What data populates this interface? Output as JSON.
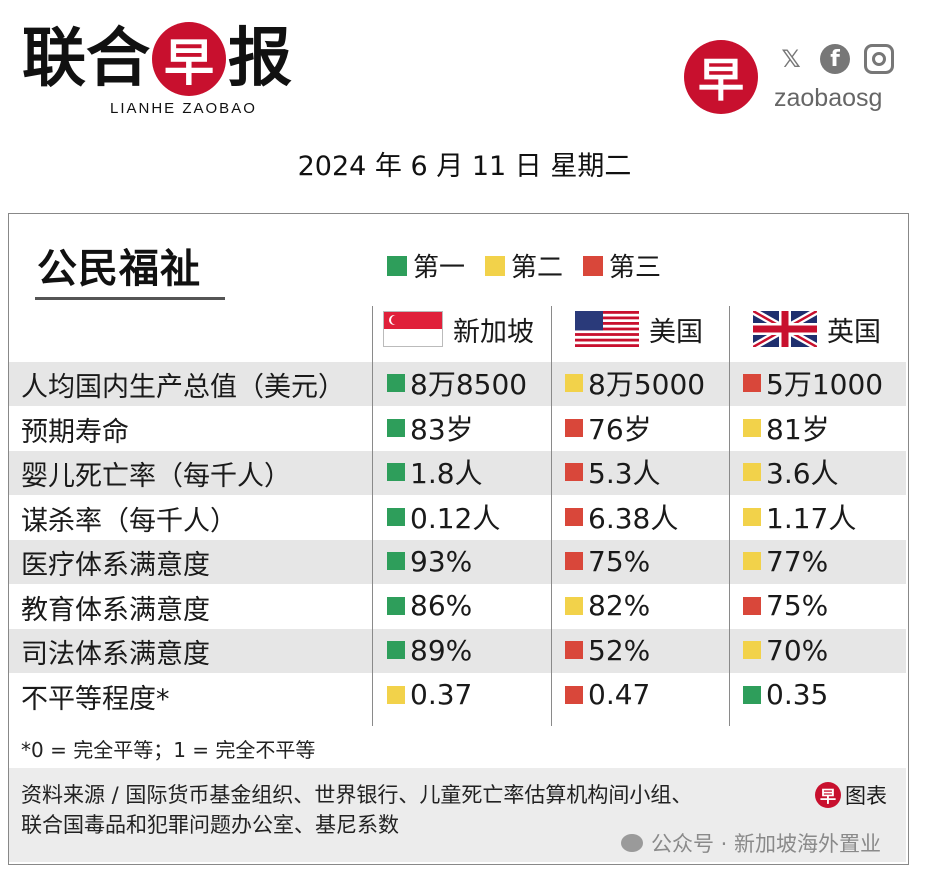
{
  "header": {
    "logo_cn": [
      "联",
      "合",
      "早",
      "报"
    ],
    "logo_en": "LIANHE ZAOBAO",
    "brand_char": "早",
    "social_icons": [
      "x-icon",
      "facebook-icon",
      "instagram-icon"
    ],
    "handle": "zaobaosg",
    "date": "2024 年 6 月 11 日  星期二"
  },
  "card": {
    "title": "公民福祉",
    "legend": [
      {
        "label": "第一",
        "color": "#2e9e5b"
      },
      {
        "label": "第二",
        "color": "#f2d24a"
      },
      {
        "label": "第三",
        "color": "#d9473a"
      }
    ],
    "columns": [
      {
        "name": "新加坡",
        "flag": "singapore-flag"
      },
      {
        "name": "美国",
        "flag": "usa-flag"
      },
      {
        "name": "英国",
        "flag": "uk-flag"
      }
    ],
    "rows": [
      {
        "label": "人均国内生产总值（美元）",
        "values": [
          "8万8500",
          "8万5000",
          "5万1000"
        ],
        "ranks": [
          "green",
          "yellow",
          "red"
        ]
      },
      {
        "label": "预期寿命",
        "values": [
          "83岁",
          "76岁",
          "81岁"
        ],
        "ranks": [
          "green",
          "red",
          "yellow"
        ]
      },
      {
        "label": "婴儿死亡率（每千人）",
        "values": [
          "1.8人",
          "5.3人",
          "3.6人"
        ],
        "ranks": [
          "green",
          "red",
          "yellow"
        ]
      },
      {
        "label": "谋杀率（每千人）",
        "values": [
          "0.12人",
          "6.38人",
          "1.17人"
        ],
        "ranks": [
          "green",
          "red",
          "yellow"
        ]
      },
      {
        "label": "医疗体系满意度",
        "values": [
          "93%",
          "75%",
          "77%"
        ],
        "ranks": [
          "green",
          "red",
          "yellow"
        ]
      },
      {
        "label": "教育体系满意度",
        "values": [
          "86%",
          "82%",
          "75%"
        ],
        "ranks": [
          "green",
          "yellow",
          "red"
        ]
      },
      {
        "label": "司法体系满意度",
        "values": [
          "89%",
          "52%",
          "70%"
        ],
        "ranks": [
          "green",
          "red",
          "yellow"
        ]
      },
      {
        "label": "不平等程度*",
        "values": [
          "0.37",
          "0.47",
          "0.35"
        ],
        "ranks": [
          "yellow",
          "red",
          "green"
        ]
      }
    ],
    "footnote": "*0 = 完全平等；1 = 完全不平等",
    "source_line1": "资料来源 / 国际货币基金组织、世界银行、儿童死亡率估算机构间小组、",
    "source_line2": "联合国毒品和犯罪问题办公室、基尼系数",
    "chart_badge_char": "早",
    "chart_badge_label": "图表",
    "watermark": "公众号 · 新加坡海外置业"
  },
  "colors": {
    "green": "#2e9e5b",
    "yellow": "#f2d24a",
    "red": "#d9473a",
    "brand": "#c8102e"
  }
}
